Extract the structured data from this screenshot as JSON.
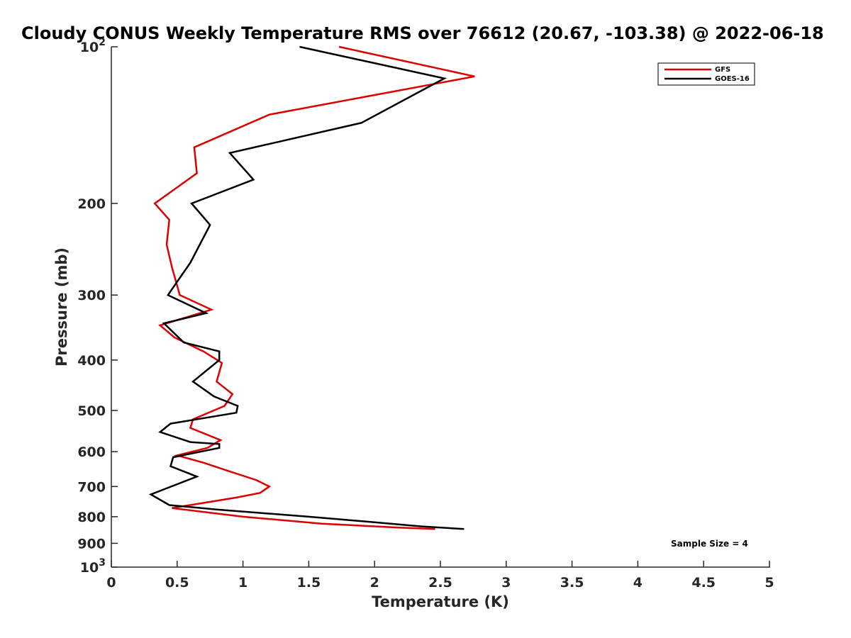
{
  "chart_data": {
    "type": "line",
    "title": "Cloudy CONUS Weekly Temperature RMS over 76612 (20.67, -103.38) @ 2022-06-18",
    "xlabel": "Temperature (K)",
    "ylabel": "Pressure (mb)",
    "xlim": [
      0,
      5
    ],
    "ylim": [
      100,
      1000
    ],
    "yscale": "log",
    "y_reversed": true,
    "xticks": [
      0,
      0.5,
      1,
      1.5,
      2,
      2.5,
      3,
      3.5,
      4,
      4.5,
      5
    ],
    "xtick_labels": [
      "0",
      "0.5",
      "1",
      "1.5",
      "2",
      "2.5",
      "3",
      "3.5",
      "4",
      "4.5",
      "5"
    ],
    "yticks": [
      100,
      200,
      300,
      400,
      500,
      600,
      700,
      800,
      900,
      1000
    ],
    "ytick_labels": [
      {
        "base": "10",
        "exp": "2"
      },
      {
        "base": "200"
      },
      {
        "base": "300"
      },
      {
        "base": "400"
      },
      {
        "base": "500"
      },
      {
        "base": "600"
      },
      {
        "base": "700"
      },
      {
        "base": "800"
      },
      {
        "base": "900"
      },
      {
        "base": "10",
        "exp": "3"
      }
    ],
    "grid": false,
    "legend_position": "top-right",
    "series": [
      {
        "name": "GFS",
        "color": "#dd0000",
        "points": [
          [
            1.73,
            100
          ],
          [
            2.76,
            114
          ],
          [
            1.2,
            135
          ],
          [
            0.63,
            156
          ],
          [
            0.65,
            175
          ],
          [
            0.33,
            200
          ],
          [
            0.44,
            215
          ],
          [
            0.42,
            240
          ],
          [
            0.46,
            265
          ],
          [
            0.52,
            300
          ],
          [
            0.76,
            320
          ],
          [
            0.37,
            343
          ],
          [
            0.48,
            362
          ],
          [
            0.7,
            385
          ],
          [
            0.84,
            405
          ],
          [
            0.8,
            440
          ],
          [
            0.92,
            465
          ],
          [
            0.86,
            490
          ],
          [
            0.62,
            520
          ],
          [
            0.6,
            540
          ],
          [
            0.83,
            570
          ],
          [
            0.73,
            590
          ],
          [
            0.5,
            610
          ],
          [
            0.7,
            630
          ],
          [
            0.9,
            655
          ],
          [
            1.1,
            680
          ],
          [
            1.2,
            700
          ],
          [
            1.13,
            720
          ],
          [
            0.95,
            735
          ],
          [
            0.46,
            770
          ],
          [
            1.0,
            800
          ],
          [
            1.6,
            825
          ],
          [
            2.2,
            840
          ],
          [
            2.46,
            845
          ]
        ]
      },
      {
        "name": "GOES-16",
        "color": "#000000",
        "points": [
          [
            1.43,
            100
          ],
          [
            2.53,
            115
          ],
          [
            1.9,
            140
          ],
          [
            0.9,
            160
          ],
          [
            1.08,
            180
          ],
          [
            0.61,
            200
          ],
          [
            0.75,
            220
          ],
          [
            0.6,
            260
          ],
          [
            0.43,
            300
          ],
          [
            0.72,
            325
          ],
          [
            0.4,
            340
          ],
          [
            0.55,
            370
          ],
          [
            0.82,
            385
          ],
          [
            0.82,
            400
          ],
          [
            0.62,
            440
          ],
          [
            0.78,
            470
          ],
          [
            0.96,
            490
          ],
          [
            0.95,
            505
          ],
          [
            0.45,
            530
          ],
          [
            0.37,
            550
          ],
          [
            0.6,
            575
          ],
          [
            0.82,
            580
          ],
          [
            0.82,
            590
          ],
          [
            0.47,
            615
          ],
          [
            0.45,
            640
          ],
          [
            0.65,
            670
          ],
          [
            0.3,
            725
          ],
          [
            0.44,
            760
          ],
          [
            0.8,
            775
          ],
          [
            1.5,
            800
          ],
          [
            2.0,
            820
          ],
          [
            2.35,
            835
          ],
          [
            2.68,
            845
          ]
        ]
      }
    ],
    "annotations": [
      "Sample Size = 4"
    ]
  }
}
